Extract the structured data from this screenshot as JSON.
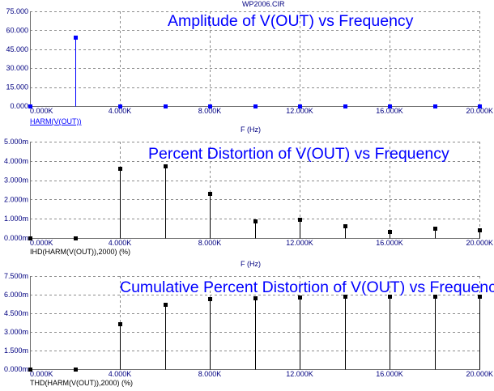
{
  "window": {
    "file_name": "WP2006.CIR"
  },
  "colors": {
    "plot_title": "#0000ff",
    "scale_text": "#000080",
    "grid": "#8c8c8c",
    "axis": "#6e6e6e",
    "background": "#ffffff"
  },
  "chart_data": [
    {
      "type": "bar",
      "title": "Amplitude of V(OUT) vs Frequency",
      "xlabel": "F (Hz)",
      "x": [
        0,
        2000,
        4000,
        6000,
        8000,
        10000,
        12000,
        14000,
        16000,
        18000,
        20000
      ],
      "series": [
        {
          "name": "HARM(V(OUT))",
          "color": "#0000ff",
          "values": [
            0,
            54.6,
            0.002,
            0.002,
            0.0012,
            0.0005,
            0.0005,
            0.0003,
            0.0002,
            0.0003,
            0.0002
          ]
        }
      ],
      "xlim": [
        0,
        20000
      ],
      "ylim": [
        0,
        75
      ],
      "x_ticks": [
        0,
        4000,
        8000,
        12000,
        16000,
        20000
      ],
      "x_tick_labels": [
        "0.000K",
        "4.000K",
        "8.000K",
        "12.000K",
        "16.000K",
        "20.000K"
      ],
      "y_ticks": [
        75,
        60,
        45,
        30,
        15,
        0
      ],
      "y_tick_labels": [
        "75.000",
        "60.000",
        "45.000",
        "30.000",
        "15.000",
        "0.000"
      ],
      "grid": true
    },
    {
      "type": "bar",
      "title": "Percent Distortion of V(OUT) vs Frequency",
      "xlabel": "F (Hz)",
      "x": [
        0,
        2000,
        4000,
        6000,
        8000,
        10000,
        12000,
        14000,
        16000,
        18000,
        20000
      ],
      "series": [
        {
          "name": "IHD(HARM(V(OUT)),2000) (%)",
          "color": "#000000",
          "values": [
            0,
            0,
            0.0036,
            0.00375,
            0.0023,
            0.0009,
            0.00095,
            0.00063,
            0.00034,
            0.0005,
            0.00042
          ]
        }
      ],
      "xlim": [
        0,
        20000
      ],
      "ylim": [
        0,
        0.005
      ],
      "x_ticks": [
        0,
        4000,
        8000,
        12000,
        16000,
        20000
      ],
      "x_tick_labels": [
        "0.000K",
        "4.000K",
        "8.000K",
        "12.000K",
        "16.000K",
        "20.000K"
      ],
      "y_ticks": [
        0.005,
        0.004,
        0.003,
        0.002,
        0.001,
        0
      ],
      "y_tick_labels": [
        "5.000m",
        "4.000m",
        "3.000m",
        "2.000m",
        "1.000m",
        "0.000m"
      ],
      "grid": true
    },
    {
      "type": "bar",
      "title": "Cumulative Percent Distortion of V(OUT) vs Frequency",
      "x": [
        0,
        2000,
        4000,
        6000,
        8000,
        10000,
        12000,
        14000,
        16000,
        18000,
        20000
      ],
      "series": [
        {
          "name": "THD(HARM(V(OUT)),2000) (%)",
          "color": "#000000",
          "values": [
            0,
            0,
            0.00365,
            0.00525,
            0.0057,
            0.00575,
            0.0058,
            0.00585,
            0.00585,
            0.00585,
            0.0059
          ]
        }
      ],
      "xlim": [
        0,
        20000
      ],
      "ylim": [
        0,
        0.0075
      ],
      "x_ticks": [
        0,
        4000,
        8000,
        12000,
        16000,
        20000
      ],
      "x_tick_labels": [
        "0.000K",
        "4.000K",
        "8.000K",
        "12.000K",
        "16.000K",
        "20.000K"
      ],
      "y_ticks": [
        0.0075,
        0.006,
        0.0045,
        0.003,
        0.0015,
        0
      ],
      "y_tick_labels": [
        "7.500m",
        "6.000m",
        "4.500m",
        "3.000m",
        "1.500m",
        "0.000m"
      ],
      "grid": true
    }
  ]
}
